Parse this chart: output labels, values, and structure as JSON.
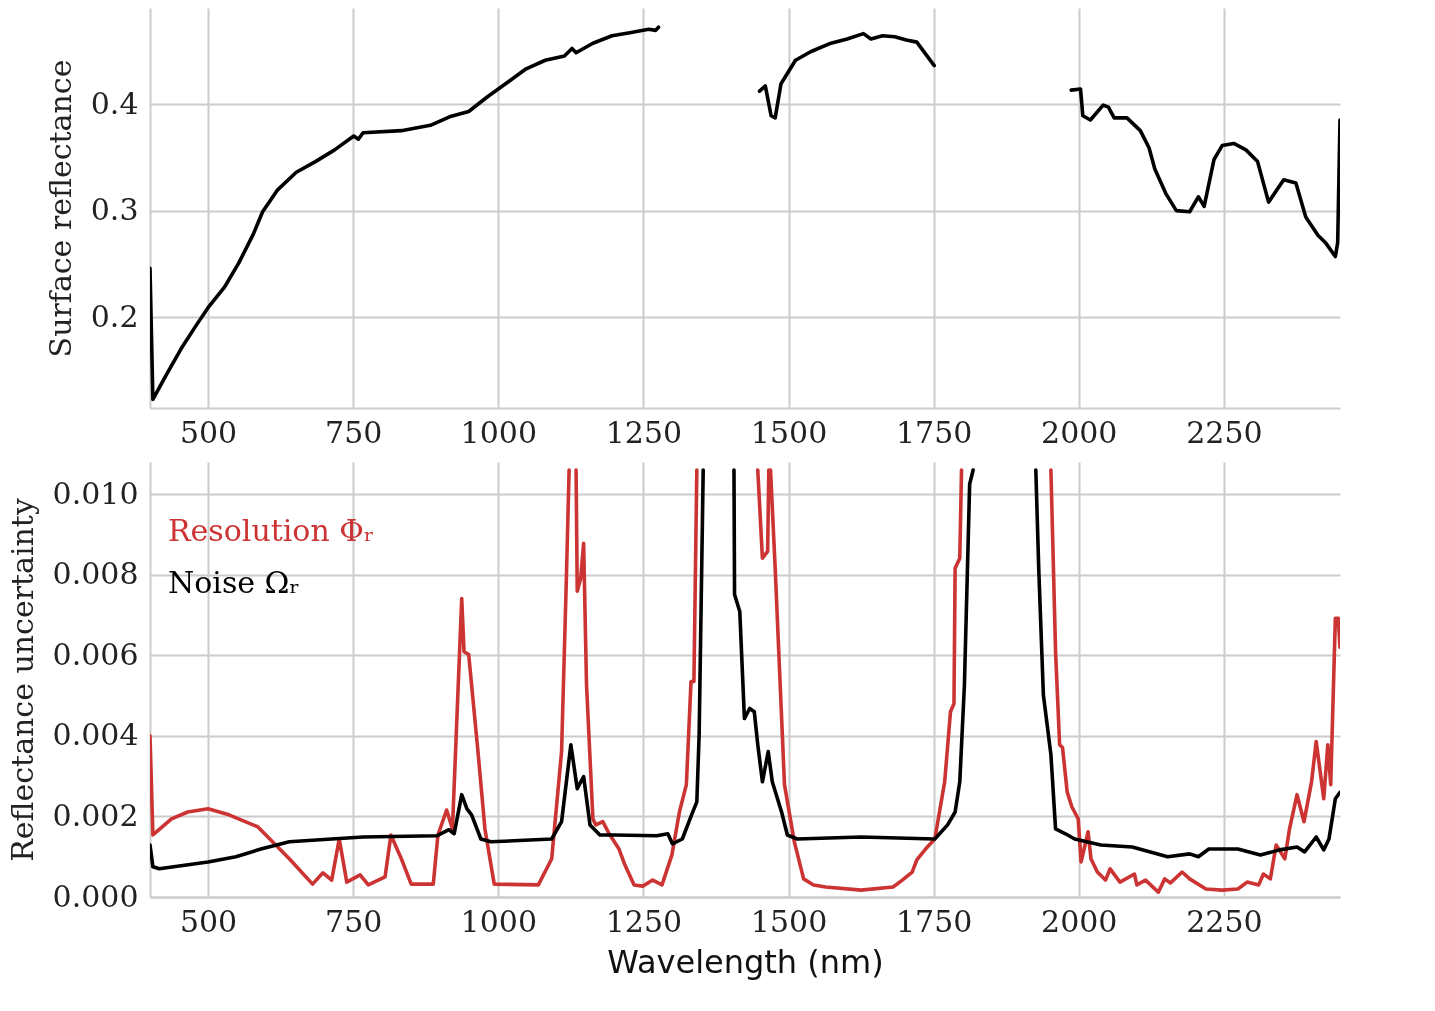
{
  "chart_data": [
    {
      "type": "line",
      "ylabel": "Surface reflectance",
      "xlim": [
        400,
        2450
      ],
      "xticks": [
        500,
        750,
        1000,
        1250,
        1500,
        1750,
        2000,
        2250
      ],
      "ylim": [
        0.115,
        0.49
      ],
      "yticks": [
        0.2,
        0.3,
        0.4
      ],
      "grid": true,
      "series": [
        {
          "color": "#000000",
          "x": [
            400,
            405,
            429,
            454,
            479,
            500,
            528,
            553,
            578,
            594,
            619,
            652,
            685,
            718,
            751,
            759,
            767,
            833,
            883,
            916,
            949,
            982,
            1015,
            1048,
            1081,
            1114,
            1127,
            1134,
            1163,
            1196,
            1229,
            1259,
            1271,
            1276,
            1360,
            1450,
            1460,
            1470,
            1477,
            1487,
            1512,
            1538,
            1573,
            1601,
            1629,
            1642,
            1662,
            1683,
            1703,
            1721,
            1751,
            1850,
            1987,
            2003,
            2007,
            2020,
            2042,
            2051,
            2061,
            2083,
            2106,
            2121,
            2131,
            2150,
            2168,
            2191,
            2206,
            2216,
            2233,
            2247,
            2267,
            2288,
            2308,
            2327,
            2353,
            2374,
            2391,
            2412,
            2425,
            2442,
            2446,
            2450
          ],
          "values": [
            0.246,
            0.123,
            0.147,
            0.171,
            0.192,
            0.209,
            0.228,
            0.251,
            0.278,
            0.299,
            0.319,
            0.336,
            0.346,
            0.357,
            0.37,
            0.367,
            0.373,
            0.375,
            0.38,
            0.388,
            0.393,
            0.407,
            0.42,
            0.433,
            0.441,
            0.445,
            0.452,
            0.448,
            0.457,
            0.464,
            0.467,
            0.47,
            0.469,
            0.472,
            null,
            0.412,
            0.417,
            0.389,
            0.387,
            0.419,
            0.441,
            0.449,
            0.457,
            0.461,
            0.466,
            0.461,
            0.464,
            0.463,
            0.46,
            0.458,
            0.436,
            null,
            0.413,
            0.414,
            0.389,
            0.385,
            0.399,
            0.397,
            0.387,
            0.387,
            0.375,
            0.359,
            0.339,
            0.316,
            0.3,
            0.299,
            0.313,
            0.304,
            0.348,
            0.361,
            0.363,
            0.357,
            0.346,
            0.308,
            0.329,
            0.326,
            0.294,
            0.277,
            0.27,
            0.257,
            0.27,
            0.385
          ]
        }
      ]
    },
    {
      "type": "line",
      "xlabel": "Wavelength (nm)",
      "ylabel": "Reflectance uncertainty",
      "xlim": [
        400,
        2450
      ],
      "xticks": [
        500,
        750,
        1000,
        1250,
        1500,
        1750,
        2000,
        2250
      ],
      "ylim": [
        0,
        0.0108
      ],
      "yticks": [
        {
          "value": 0,
          "label": "0.000"
        },
        {
          "value": 0.002,
          "label": "0.002"
        },
        {
          "value": 0.004,
          "label": "0.004"
        },
        {
          "value": 0.006,
          "label": "0.006"
        },
        {
          "value": 0.008,
          "label": "0.008"
        },
        {
          "value": 0.01,
          "label": "0.010"
        }
      ],
      "grid": true,
      "legend": "top left",
      "series": [
        {
          "name": "Resolution Φᵣ",
          "color": "#cc3333",
          "x": [
            400,
            405,
            437,
            465,
            500,
            536,
            586,
            640,
            680,
            698,
            713,
            726,
            739,
            762,
            776,
            805,
            815,
            833,
            850,
            888,
            896,
            911,
            921,
            937,
            941,
            949,
            965,
            977,
            993,
            1069,
            1092,
            1109,
            1117,
            1122,
            1128,
            1134,
            1136,
            1142,
            1147,
            1152,
            1163,
            1168,
            1180,
            1191,
            1208,
            1218,
            1234,
            1249,
            1266,
            1282,
            1299,
            1312,
            1324,
            1332,
            1337,
            1342,
            1395,
            1447,
            1455,
            1464,
            1466,
            1467,
            1469,
            1477,
            1493,
            1510,
            1526,
            1543,
            1564,
            1625,
            1680,
            1696,
            1713,
            1721,
            1736,
            1752,
            1769,
            1779,
            1785,
            1787,
            1795,
            1798,
            1870,
            1952,
            1960,
            1967,
            1972,
            1980,
            1988,
            1999,
            2004,
            2016,
            2021,
            2032,
            2046,
            2054,
            2071,
            2096,
            2100,
            2115,
            2137,
            2148,
            2158,
            2178,
            2191,
            2219,
            2247,
            2274,
            2290,
            2310,
            2318,
            2330,
            2340,
            2355,
            2363,
            2376,
            2388,
            2401,
            2409,
            2422,
            2429,
            2434,
            2442,
            2447,
            2450
          ],
          "values": [
            0.004,
            0.00154,
            0.00194,
            0.00211,
            0.00219,
            0.00204,
            0.00174,
            0.00095,
            0.00032,
            0.0006,
            0.00042,
            0.00144,
            0.00037,
            0.00055,
            0.0003,
            0.0005,
            0.00154,
            0.00095,
            0.00032,
            0.00032,
            0.00154,
            0.00216,
            0.00169,
            0.00741,
            0.00609,
            0.00602,
            0.00361,
            0.00169,
            0.00032,
            0.0003,
            0.00095,
            0.00361,
            0.00776,
            0.0106,
            null,
            0.0106,
            0.00759,
            0.00791,
            0.00878,
            0.00527,
            0.00194,
            0.00179,
            0.00187,
            0.00157,
            0.00119,
            0.0008,
            0.0003,
            0.00027,
            0.00042,
            0.0003,
            0.00104,
            0.00211,
            0.00279,
            0.00535,
            0.00535,
            0.0106,
            null,
            0.0106,
            0.00841,
            0.00858,
            0.0106,
            null,
            0.0106,
            0.00816,
            0.00279,
            0.00137,
            0.00045,
            0.0003,
            0.00025,
            0.00017,
            0.00025,
            0.00042,
            0.00062,
            0.00092,
            0.00119,
            0.00144,
            0.00286,
            0.0046,
            0.0048,
            0.00816,
            0.00841,
            0.0106,
            null,
            0.0106,
            0.00609,
            0.00378,
            0.00371,
            0.00261,
            0.00224,
            0.00194,
            0.00087,
            0.00162,
            0.00095,
            0.00062,
            0.00042,
            0.0007,
            0.00037,
            0.00057,
            0.0003,
            0.00042,
            0.00012,
            0.00045,
            0.00035,
            0.00062,
            0.00045,
            0.0002,
            0.00017,
            0.0002,
            0.00037,
            0.0003,
            0.00057,
            0.00045,
            0.00129,
            0.00095,
            0.00169,
            0.00254,
            0.00187,
            0.00286,
            0.00386,
            0.00244,
            0.00378,
            0.00279,
            0.00692,
            0.00692,
            0.0062
          ]
        },
        {
          "name": "Noise Ωᵣ",
          "color": "#000000",
          "x": [
            400,
            405,
            416,
            500,
            548,
            591,
            640,
            713,
            767,
            894,
            915,
            924,
            937,
            946,
            954,
            970,
            987,
            1092,
            1109,
            1125,
            1136,
            1147,
            1158,
            1175,
            1201,
            1273,
            1292,
            1300,
            1317,
            1333,
            1342,
            1346,
            1353,
            1380,
            1406,
            1407,
            1416,
            1424,
            1433,
            1441,
            1447,
            1455,
            1465,
            1472,
            1488,
            1498,
            1515,
            1625,
            1752,
            1774,
            1787,
            1795,
            1803,
            1812,
            1818,
            1870,
            1926,
            1931,
            1939,
            1952,
            1960,
            1977,
            1993,
            2038,
            2092,
            2153,
            2191,
            2206,
            2224,
            2274,
            2313,
            2346,
            2376,
            2389,
            2409,
            2422,
            2431,
            2442,
            2450
          ],
          "values": [
            0.00129,
            0.00075,
            0.0007,
            0.00087,
            0.001,
            0.00119,
            0.00137,
            0.00144,
            0.00149,
            0.00152,
            0.00167,
            0.00157,
            0.00254,
            0.00219,
            0.00204,
            0.00144,
            0.00137,
            0.00144,
            0.00187,
            0.00378,
            0.00269,
            0.00299,
            0.00179,
            0.00154,
            0.00154,
            0.00152,
            0.00157,
            0.00132,
            0.00144,
            0.00204,
            0.00236,
            0.00403,
            0.0106,
            null,
            0.0106,
            0.00751,
            0.00709,
            0.00443,
            0.00468,
            0.0046,
            0.00378,
            0.00286,
            0.00361,
            0.00286,
            0.00211,
            0.00154,
            0.00144,
            0.00149,
            0.00144,
            0.00179,
            0.00211,
            0.00286,
            0.00527,
            0.01025,
            0.0106,
            null,
            0.0106,
            0.00816,
            0.00502,
            0.00353,
            0.00169,
            0.00157,
            0.00144,
            0.00129,
            0.00124,
            0.001,
            0.00107,
            0.001,
            0.00119,
            0.00119,
            0.00104,
            0.00117,
            0.00124,
            0.00112,
            0.00149,
            0.00117,
            0.00144,
            0.00244,
            0.0026
          ]
        }
      ]
    }
  ]
}
